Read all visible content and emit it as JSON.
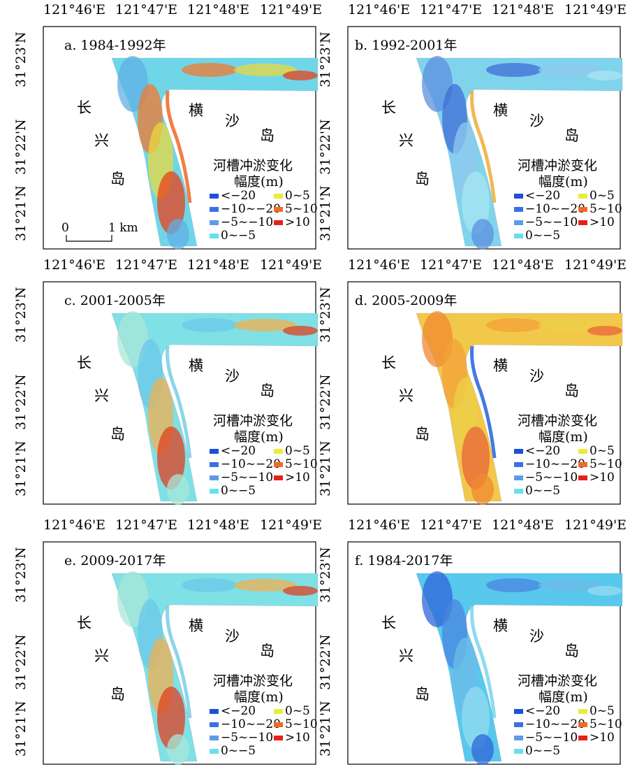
{
  "longitude_labels": [
    "121°46'E",
    "121°47'E",
    "121°48'E",
    "121°49'E"
  ],
  "latitude_labels": [
    "31°23'N",
    "31°22'N",
    "31°21'N"
  ],
  "place_names": {
    "changxing": [
      "长",
      "兴",
      "岛"
    ],
    "hengsha": [
      "横",
      "沙",
      "岛"
    ]
  },
  "legend": {
    "title": "河槽冲淤变化",
    "subtitle": "幅度(m)",
    "classes": [
      {
        "label": "<−20",
        "color": "#1f4fd8"
      },
      {
        "label": "−10~−20",
        "color": "#3a70e0"
      },
      {
        "label": "−5~−10",
        "color": "#5f9ae8"
      },
      {
        "label": "0~−5",
        "color": "#66e0ee"
      },
      {
        "label": "0~5",
        "color": "#e6ee3a"
      },
      {
        "label": "5~10",
        "color": "#f06a2a"
      },
      {
        "label": ">10",
        "color": "#e8201a"
      }
    ]
  },
  "scale_bar": {
    "start": "0",
    "end": "1 km"
  },
  "panels": [
    {
      "title": "a. 1984-1992年",
      "theme": "mixed"
    },
    {
      "title": "b. 1992-2001年",
      "theme": "erosion"
    },
    {
      "title": "c. 2001-2005年",
      "theme": "calm"
    },
    {
      "title": "d. 2005-2009年",
      "theme": "deposition"
    },
    {
      "title": "e. 2009-2017年",
      "theme": "calm"
    },
    {
      "title": "f. 1984-2017年",
      "theme": "strong-erosion"
    }
  ]
}
